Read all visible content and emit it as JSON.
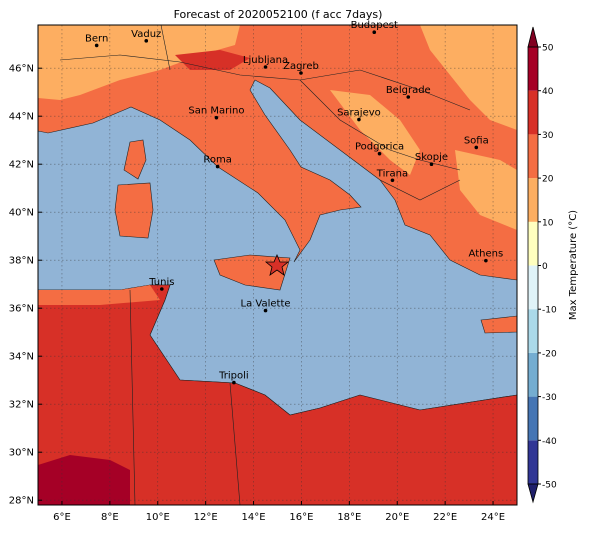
{
  "title": "Forecast of 2020052100 (f acc 7days)",
  "map": {
    "x_ticks": [
      "6°E",
      "8°E",
      "10°E",
      "12°E",
      "14°E",
      "16°E",
      "18°E",
      "20°E",
      "22°E",
      "24°E"
    ],
    "y_ticks": [
      "28°N",
      "30°N",
      "32°N",
      "34°N",
      "36°N",
      "38°N",
      "40°N",
      "42°N",
      "44°N",
      "46°N"
    ],
    "cities": [
      "Bern",
      "Vaduz",
      "Budapest",
      "Ljubljana",
      "Zagreb",
      "Belgrade",
      "San Marino",
      "Sarajevo",
      "Sofia",
      "Podgorica",
      "Skopje",
      "Roma",
      "Tirana",
      "Athens",
      "Tunis",
      "La Valette",
      "Tripoli"
    ]
  },
  "colorbar": {
    "label": "Max Temperature (°C)",
    "ticks": [
      -50,
      -40,
      -30,
      -20,
      -10,
      0,
      10,
      20,
      30,
      40,
      50
    ],
    "colors": [
      "#313695",
      "#4575b4",
      "#74add1",
      "#abd9e9",
      "#e0f3f8",
      "#ffffbf",
      "#fdae61",
      "#f46d43",
      "#d73027",
      "#a50026"
    ],
    "under_color": "#1f1f6b",
    "over_color": "#800020"
  }
}
